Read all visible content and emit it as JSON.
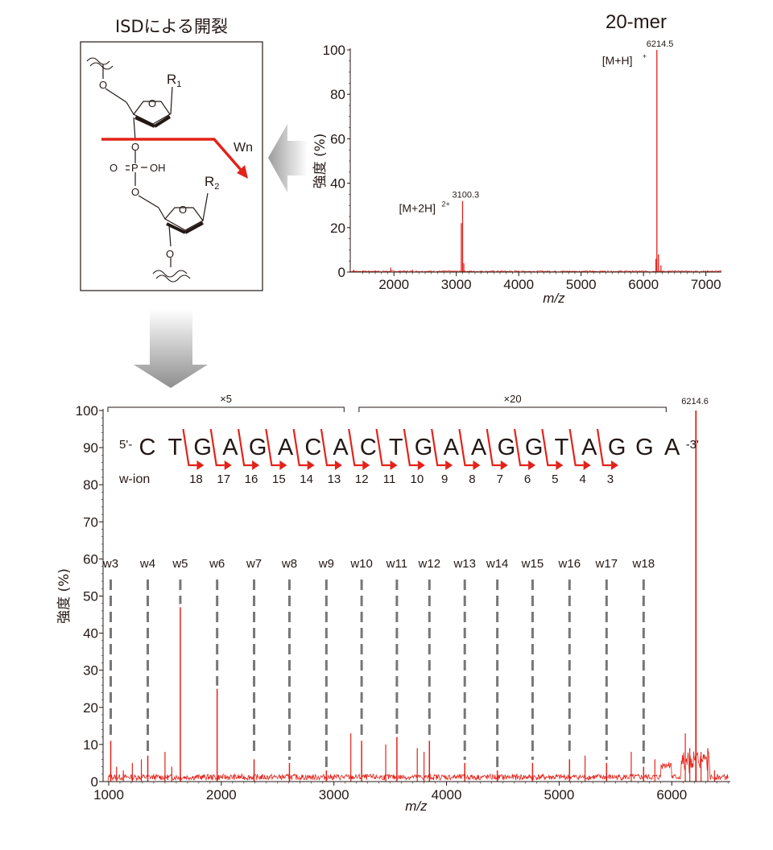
{
  "colors": {
    "spectrum": "#e2231a",
    "text": "#231815",
    "guide": "#777777",
    "arrow": "#e2231a"
  },
  "mechanism": {
    "title": "ISDによる開裂",
    "r1": "R",
    "r1_sub": "1",
    "r2": "R",
    "r2_sub": "2",
    "cleavage_label": "Wn",
    "o_label": "O",
    "p_label": "P",
    "oh_label": "OH"
  },
  "chart_data": [
    {
      "type": "line",
      "title": "20-mer",
      "xlabel": "m/z",
      "ylabel": "強度 (%)",
      "xlim": [
        1300,
        7250
      ],
      "ylim": [
        0,
        100
      ],
      "xticks": [
        "2000",
        "3000",
        "4000",
        "5000",
        "6000",
        "7000"
      ],
      "yticks": [
        "0",
        "20",
        "40",
        "60",
        "80",
        "100"
      ],
      "peaks": [
        {
          "x": 3100.3,
          "y": 32,
          "label": "3100.3",
          "ion": "[M+2H]",
          "charge": "2+"
        },
        {
          "x": 6214.5,
          "y": 100,
          "label": "6214.5",
          "ion": "[M+H]",
          "charge": "+"
        }
      ],
      "baseline_series": [
        {
          "x": 1350,
          "y": 1
        },
        {
          "x": 1500,
          "y": 0.5
        },
        {
          "x": 1950,
          "y": 2
        },
        {
          "x": 2300,
          "y": 1
        },
        {
          "x": 3080,
          "y": 22
        },
        {
          "x": 3100.3,
          "y": 32
        },
        {
          "x": 3120,
          "y": 4
        },
        {
          "x": 6200,
          "y": 6
        },
        {
          "x": 6214.5,
          "y": 100
        },
        {
          "x": 6240,
          "y": 8
        },
        {
          "x": 6280,
          "y": 3
        }
      ]
    },
    {
      "type": "line",
      "xlabel": "m/z",
      "ylabel": "強度 (%)",
      "xlim": [
        950,
        6520
      ],
      "ylim": [
        0,
        100
      ],
      "xticks": [
        "1000",
        "2000",
        "3000",
        "4000",
        "5000",
        "6000"
      ],
      "yticks": [
        "0",
        "10",
        "20",
        "30",
        "40",
        "50",
        "60",
        "70",
        "80",
        "90",
        "100"
      ],
      "scale_brackets": [
        {
          "label": "×5",
          "x_from": 950,
          "x_to": 3090
        },
        {
          "label": "×20",
          "x_from": 3180,
          "x_to": 5950
        }
      ],
      "top_peak": {
        "x": 6214.6,
        "y": 100,
        "label": "6214.6"
      },
      "w_ions": [
        {
          "label": "w3",
          "x": 1018,
          "y": 11
        },
        {
          "label": "w4",
          "x": 1347,
          "y": 7
        },
        {
          "label": "w5",
          "x": 1636,
          "y": 47
        },
        {
          "label": "w6",
          "x": 1963,
          "y": 25
        },
        {
          "label": "w7",
          "x": 2291,
          "y": 6
        },
        {
          "label": "w8",
          "x": 2605,
          "y": 5
        },
        {
          "label": "w9",
          "x": 2933,
          "y": 3
        },
        {
          "label": "w10",
          "x": 3246,
          "y": 11
        },
        {
          "label": "w11",
          "x": 3559,
          "y": 12
        },
        {
          "label": "w12",
          "x": 3848,
          "y": 11
        },
        {
          "label": "w13",
          "x": 4162,
          "y": 5
        },
        {
          "label": "w14",
          "x": 4451,
          "y": 3
        },
        {
          "label": "w15",
          "x": 4764,
          "y": 5
        },
        {
          "label": "w16",
          "x": 5092,
          "y": 6
        },
        {
          "label": "w17",
          "x": 5421,
          "y": 5
        },
        {
          "label": "w18",
          "x": 5750,
          "y": 4
        }
      ],
      "extra_peaks": [
        {
          "x": 1070,
          "y": 4
        },
        {
          "x": 1130,
          "y": 3
        },
        {
          "x": 1210,
          "y": 5
        },
        {
          "x": 1290,
          "y": 6
        },
        {
          "x": 1500,
          "y": 8
        },
        {
          "x": 1560,
          "y": 4
        },
        {
          "x": 3150,
          "y": 13
        },
        {
          "x": 3460,
          "y": 10
        },
        {
          "x": 3740,
          "y": 9
        },
        {
          "x": 3800,
          "y": 8
        },
        {
          "x": 5230,
          "y": 7
        },
        {
          "x": 5640,
          "y": 8
        },
        {
          "x": 5850,
          "y": 6
        },
        {
          "x": 6120,
          "y": 13
        },
        {
          "x": 6160,
          "y": 9
        },
        {
          "x": 6260,
          "y": 8
        },
        {
          "x": 6320,
          "y": 9
        },
        {
          "x": 6380,
          "y": 3
        }
      ]
    }
  ],
  "sequence": {
    "prefix": "5'-",
    "suffix": "-3'",
    "bases": [
      "C",
      "T",
      "G",
      "A",
      "G",
      "A",
      "C",
      "A",
      "C",
      "T",
      "G",
      "A",
      "A",
      "G",
      "G",
      "T",
      "A",
      "G",
      "G",
      "A"
    ],
    "w_ion_label": "w-ion",
    "w_ion_numbers": [
      "18",
      "17",
      "16",
      "15",
      "14",
      "13",
      "12",
      "11",
      "10",
      "9",
      "8",
      "7",
      "6",
      "5",
      "4",
      "3"
    ]
  }
}
